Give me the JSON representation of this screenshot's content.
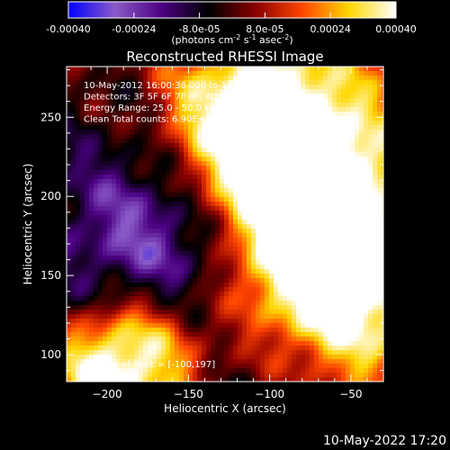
{
  "chart_data": {
    "type": "heatmap",
    "title": "Reconstructed RHESSI Image",
    "xlabel": "Heliocentric X (arcsec)",
    "ylabel": "Heliocentric Y (arcsec)",
    "xlim": [
      -225,
      -30
    ],
    "ylim": [
      83,
      282
    ],
    "x_ticks": [
      -200,
      -150,
      -100,
      -50
    ],
    "y_ticks": [
      100,
      150,
      200,
      250
    ],
    "colorbar": {
      "ticks": [
        -0.0004,
        -0.00024,
        -8e-05,
        8e-05,
        0.00024,
        0.0004
      ],
      "tick_labels": [
        "-0.00040",
        "-0.00024",
        "-8.0e-05",
        "8.0e-05",
        "0.00024",
        "0.00040"
      ],
      "unit_label": "(photons cm<sup>-2</sup> s<sup>-1</sup> asec<sup>-2</sup>)",
      "unit_parts": [
        "(photons cm",
        "-2",
        " s",
        "-1",
        " asec",
        "-2",
        ")"
      ],
      "range": [
        -0.0004,
        0.0004
      ],
      "colors": [
        "#0000ff",
        "#8a5ac8",
        "#4b0082",
        "#000000",
        "#8b0000",
        "#ff4500",
        "#ffd700",
        "#ffffff"
      ]
    },
    "annotations": [
      "10-May-2012 16:00:36.000 to 16:06:36.000",
      "Detectors: 3F 5F 6F 7F 8F, Att 0",
      "Energy Range: 25.0 - 50.0 keV",
      "Clean     Total counts: 6.90E+03"
    ],
    "peak_label": "Position of Peak = [-100,197]",
    "peak": [
      -100,
      197
    ],
    "hotspots": [
      {
        "x": -105,
        "y": 197,
        "value": 0.0004,
        "spread": 48
      },
      {
        "x": -85,
        "y": 240,
        "value": 0.00032,
        "spread": 45
      },
      {
        "x": -125,
        "y": 260,
        "value": 0.00022,
        "spread": 35
      },
      {
        "x": -55,
        "y": 175,
        "value": 0.00026,
        "spread": 38
      },
      {
        "x": -40,
        "y": 120,
        "value": 0.00028,
        "spread": 32
      },
      {
        "x": -95,
        "y": 140,
        "value": 0.00018,
        "spread": 28
      },
      {
        "x": -170,
        "y": 105,
        "value": 0.00034,
        "spread": 30
      },
      {
        "x": -205,
        "y": 88,
        "value": 0.00032,
        "spread": 24
      },
      {
        "x": -185,
        "y": 165,
        "value": -0.00018,
        "spread": 40
      },
      {
        "x": -160,
        "y": 220,
        "value": -0.00015,
        "spread": 45
      },
      {
        "x": -140,
        "y": 175,
        "value": -0.0002,
        "spread": 36
      },
      {
        "x": -130,
        "y": 120,
        "value": -0.00016,
        "spread": 35
      }
    ]
  },
  "footer": {
    "timestamp": "10-May-2022 17:20"
  }
}
